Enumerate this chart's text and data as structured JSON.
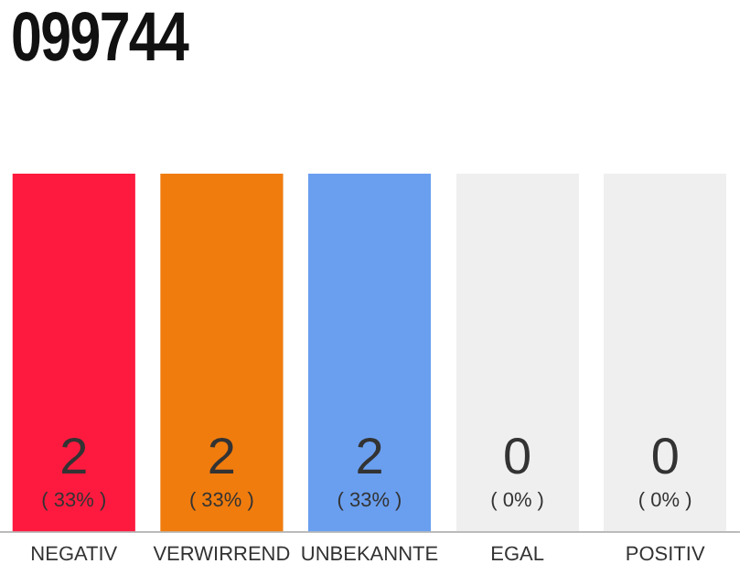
{
  "chart_data": {
    "type": "bar",
    "title": "099744",
    "categories": [
      "NEGATIV",
      "VERWIRREND",
      "UNBEKANNTE",
      "EGAL",
      "POSITIV"
    ],
    "values": [
      2,
      2,
      2,
      0,
      0
    ],
    "colors": [
      "#fe1a3f",
      "#f07c0e",
      "#6a9ff0",
      "#efefef",
      "#efefef"
    ],
    "value_labels": [
      "2",
      "2",
      "2",
      "0",
      "0"
    ],
    "annotations": [
      "( 33% )",
      "( 33% )",
      "( 33% )",
      "( 0% )",
      "( 0% )"
    ],
    "tick_labels": "x",
    "grid": false,
    "legend": false
  }
}
